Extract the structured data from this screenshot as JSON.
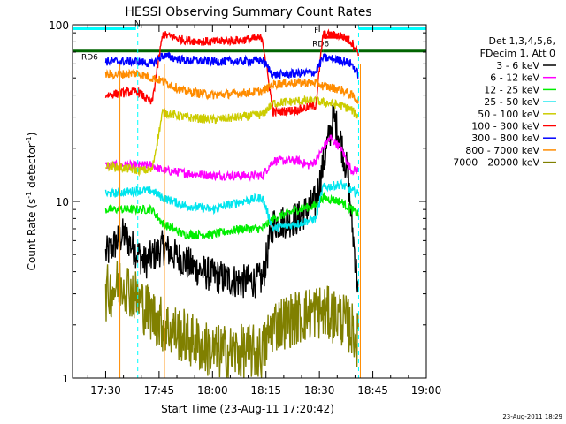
{
  "chart_data": {
    "type": "line",
    "title": "HESSI Observing Summary Count Rates",
    "xlabel": "Start Time (23-Aug-11 17:20:42)",
    "ylabel_main": "Count Rate (s",
    "ylabel_sup1": "-1",
    "ylabel_mid": " detector",
    "ylabel_sup2": "-1",
    "ylabel_end": ")",
    "y_scale": "log",
    "ylim": [
      1,
      100
    ],
    "xlim": [
      "17:20:42",
      "19:00:00"
    ],
    "x_ticks": [
      "17:30",
      "17:45",
      "18:00",
      "18:15",
      "18:30",
      "18:45",
      "19:00"
    ],
    "y_ticks": [
      "1",
      "10",
      "100"
    ],
    "legend_header": [
      "Det 1,3,4,5,6,",
      "FDecim 1, Att 0"
    ],
    "legend_position": "right",
    "series": [
      {
        "name": "3 - 6 keV",
        "color": "#000000",
        "keypoints": [
          [
            "17:30",
            5
          ],
          [
            "17:35",
            6.5
          ],
          [
            "17:41",
            4.5
          ],
          [
            "17:46",
            5.5
          ],
          [
            "17:55",
            4.2
          ],
          [
            "18:00",
            3.8
          ],
          [
            "18:08",
            3.5
          ],
          [
            "18:14",
            3.6
          ],
          [
            "18:17",
            7.5
          ],
          [
            "18:24",
            8
          ],
          [
            "18:29",
            10
          ],
          [
            "18:32",
            20
          ],
          [
            "18:34",
            30
          ],
          [
            "18:36",
            22
          ],
          [
            "18:38",
            14
          ],
          [
            "18:39",
            8
          ],
          [
            "18:41",
            3
          ]
        ]
      },
      {
        "name": "6 - 12 keV",
        "color": "#ff00ff",
        "keypoints": [
          [
            "17:30",
            16
          ],
          [
            "17:39",
            16
          ],
          [
            "17:43",
            16
          ],
          [
            "17:46",
            15
          ],
          [
            "17:52",
            14.5
          ],
          [
            "18:00",
            14
          ],
          [
            "18:08",
            14
          ],
          [
            "18:14",
            14
          ],
          [
            "18:17",
            17
          ],
          [
            "18:24",
            17
          ],
          [
            "18:27",
            16
          ],
          [
            "18:29",
            17
          ],
          [
            "18:31",
            20
          ],
          [
            "18:33",
            23
          ],
          [
            "18:36",
            20
          ],
          [
            "18:39",
            15
          ],
          [
            "18:41",
            15
          ]
        ]
      },
      {
        "name": "12 - 25 keV",
        "color": "#00ee00",
        "keypoints": [
          [
            "17:30",
            9
          ],
          [
            "17:39",
            9
          ],
          [
            "17:43",
            9
          ],
          [
            "17:46",
            7.5
          ],
          [
            "17:52",
            6.5
          ],
          [
            "18:00",
            6.5
          ],
          [
            "18:08",
            7
          ],
          [
            "18:14",
            7
          ],
          [
            "18:17",
            8
          ],
          [
            "18:24",
            9
          ],
          [
            "18:29",
            9.5
          ],
          [
            "18:31",
            10.5
          ],
          [
            "18:36",
            10
          ],
          [
            "18:39",
            9
          ],
          [
            "18:41",
            8.5
          ]
        ]
      },
      {
        "name": "25 - 50 keV",
        "color": "#00e5ee",
        "keypoints": [
          [
            "17:30",
            11
          ],
          [
            "17:39",
            11.5
          ],
          [
            "17:43",
            11.5
          ],
          [
            "17:46",
            10.5
          ],
          [
            "17:52",
            9.5
          ],
          [
            "18:00",
            9
          ],
          [
            "18:08",
            10
          ],
          [
            "18:14",
            10.5
          ],
          [
            "18:17",
            7
          ],
          [
            "18:24",
            7.5
          ],
          [
            "18:29",
            8
          ],
          [
            "18:31",
            12
          ],
          [
            "18:36",
            12.5
          ],
          [
            "18:39",
            11.5
          ],
          [
            "18:41",
            11
          ]
        ]
      },
      {
        "name": "50 - 100 keV",
        "color": "#cccc00",
        "keypoints": [
          [
            "17:30",
            16
          ],
          [
            "17:39",
            15
          ],
          [
            "17:43",
            15
          ],
          [
            "17:46",
            32
          ],
          [
            "17:52",
            30
          ],
          [
            "18:00",
            29
          ],
          [
            "18:08",
            30
          ],
          [
            "18:14",
            31
          ],
          [
            "18:17",
            36
          ],
          [
            "18:24",
            37
          ],
          [
            "18:29",
            37
          ],
          [
            "18:36",
            35
          ],
          [
            "18:39",
            33
          ],
          [
            "18:41",
            30
          ]
        ]
      },
      {
        "name": "100 - 300 keV",
        "color": "#ff0000",
        "keypoints": [
          [
            "17:30",
            40
          ],
          [
            "17:39",
            42
          ],
          [
            "17:43",
            36
          ],
          [
            "17:46",
            88
          ],
          [
            "17:52",
            82
          ],
          [
            "18:00",
            80
          ],
          [
            "18:08",
            82
          ],
          [
            "18:14",
            84
          ],
          [
            "18:17",
            32
          ],
          [
            "18:24",
            33
          ],
          [
            "18:29",
            35
          ],
          [
            "18:31",
            88
          ],
          [
            "18:36",
            87
          ],
          [
            "18:39",
            80
          ],
          [
            "18:41",
            70
          ]
        ]
      },
      {
        "name": "300 - 800 keV",
        "color": "#0000ff",
        "keypoints": [
          [
            "17:30",
            62
          ],
          [
            "17:39",
            62
          ],
          [
            "17:43",
            60
          ],
          [
            "17:46",
            67
          ],
          [
            "17:52",
            63
          ],
          [
            "18:00",
            62
          ],
          [
            "18:08",
            62
          ],
          [
            "18:14",
            63
          ],
          [
            "18:17",
            52
          ],
          [
            "18:24",
            53
          ],
          [
            "18:29",
            54
          ],
          [
            "18:31",
            65
          ],
          [
            "18:36",
            63
          ],
          [
            "18:39",
            60
          ],
          [
            "18:41",
            52
          ]
        ]
      },
      {
        "name": "800 - 7000 keV",
        "color": "#ff8c00",
        "keypoints": [
          [
            "17:30",
            52
          ],
          [
            "17:39",
            53
          ],
          [
            "17:43",
            50
          ],
          [
            "17:46",
            48
          ],
          [
            "17:52",
            42
          ],
          [
            "18:00",
            40
          ],
          [
            "18:08",
            41
          ],
          [
            "18:14",
            42
          ],
          [
            "18:17",
            46
          ],
          [
            "18:24",
            47
          ],
          [
            "18:29",
            47
          ],
          [
            "18:31",
            45
          ],
          [
            "18:36",
            43
          ],
          [
            "18:39",
            40
          ],
          [
            "18:41",
            37
          ]
        ]
      },
      {
        "name": "7000 - 20000 keV",
        "color": "#808000",
        "keypoints": [
          [
            "17:30",
            3
          ],
          [
            "17:35",
            3.5
          ],
          [
            "17:41",
            2.5
          ],
          [
            "17:46",
            2
          ],
          [
            "17:55",
            1.6
          ],
          [
            "18:00",
            1.4
          ],
          [
            "18:08",
            1.4
          ],
          [
            "18:14",
            1.4
          ],
          [
            "18:17",
            2
          ],
          [
            "18:24",
            2.2
          ],
          [
            "18:29",
            2.4
          ],
          [
            "18:36",
            2.2
          ],
          [
            "18:39",
            1.9
          ],
          [
            "18:41",
            1.6
          ]
        ]
      }
    ],
    "flags": [
      {
        "label": "N",
        "color": "#00ffff",
        "segments": [
          [
            "17:20:42",
            "17:38:30"
          ],
          [
            "18:41:00",
            "19:00:00"
          ]
        ],
        "y": 95
      },
      {
        "label": "RD6",
        "color": "#006400",
        "segments": [
          [
            "17:20:42",
            "18:31:00"
          ]
        ],
        "y": 71
      },
      {
        "label": "RD6",
        "color": "#006400",
        "segments": [
          [
            "18:31:00",
            "19:00:00"
          ]
        ],
        "y": 71
      },
      {
        "label": "F",
        "color": "#ff0000",
        "segments": [
          [
            "18:31:00",
            "18:38:30"
          ]
        ],
        "y": 85
      }
    ],
    "dashed_times": [
      "17:39:00",
      "18:41:00"
    ],
    "solid_times": [
      "17:34:00",
      "17:46:30",
      "18:41:30"
    ],
    "timestamp": "23-Aug-2011 18:29"
  }
}
